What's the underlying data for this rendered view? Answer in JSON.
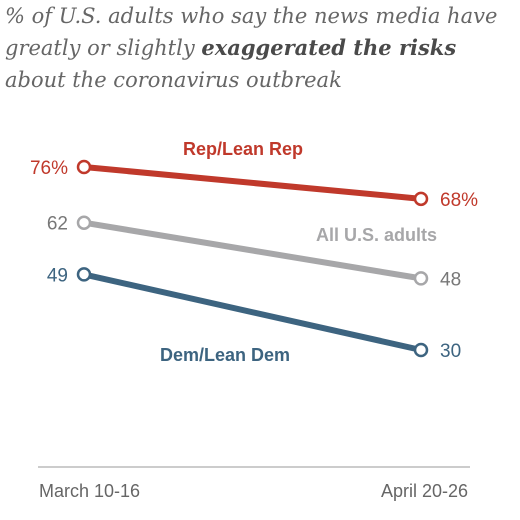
{
  "title": {
    "part1": "% of U.S. adults who say the news media have greatly or slightly ",
    "emphasis": "exaggerated the risks",
    "part2": " about the coronavirus outbreak"
  },
  "chart_data": {
    "type": "line",
    "title": "% of U.S. adults who say the news media have greatly or slightly exaggerated the risks about the coronavirus outbreak",
    "xlabel": "",
    "ylabel": "",
    "categories": [
      "March 10-16",
      "April 20-26"
    ],
    "ylim": [
      30,
      76
    ],
    "grid": false,
    "series": [
      {
        "name": "Rep/Lean Rep",
        "values": [
          76,
          68
        ],
        "labels": [
          "76%",
          "68%"
        ],
        "color": "#c0392b"
      },
      {
        "name": "All U.S. adults",
        "values": [
          62,
          48
        ],
        "labels": [
          "62",
          "48"
        ],
        "color": "#a7a7a9"
      },
      {
        "name": "Dem/Lean Dem",
        "values": [
          49,
          30
        ],
        "labels": [
          "49",
          "30"
        ],
        "color": "#3d6480"
      }
    ]
  },
  "colors": {
    "axis": "#bbbbbb",
    "tick_text": "#666666"
  }
}
